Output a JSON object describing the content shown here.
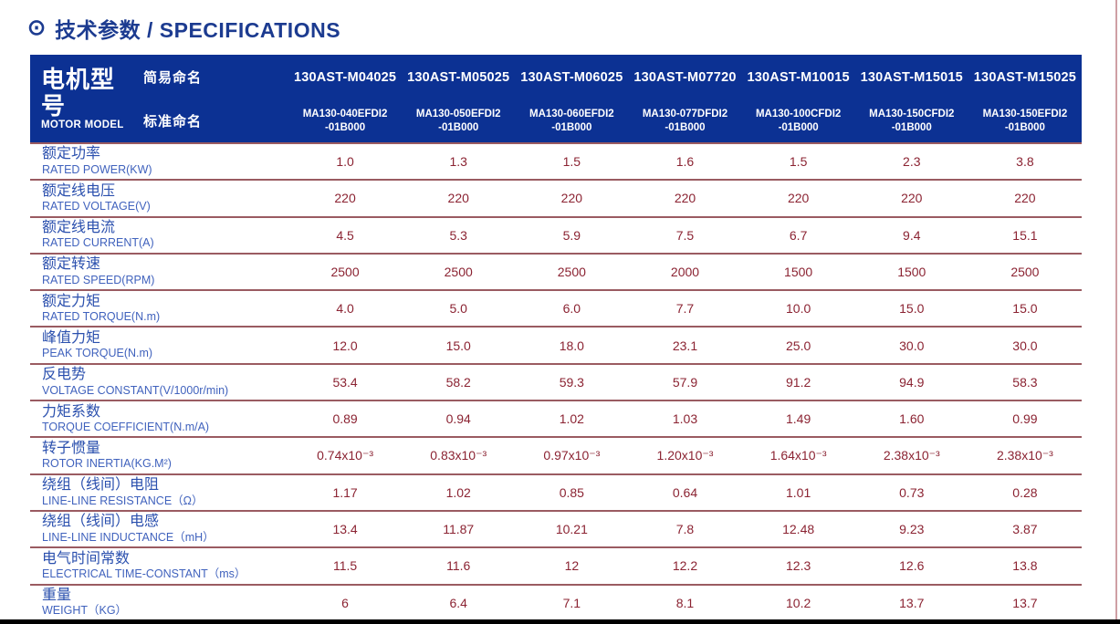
{
  "page": {
    "title_icon": "⊙",
    "title": "技术参数 / SPECIFICATIONS"
  },
  "colors": {
    "header_bg": "#0c3193",
    "title_blue": "#1c3b90",
    "label_zh_blue": "#2b50ae",
    "label_en_blue": "#4062bd",
    "value_maroon": "#8b2332",
    "row_line": "#9a5b61",
    "edge_line": "#cf9fa4",
    "bottom_bar": "#000000"
  },
  "table": {
    "model_header": {
      "zh": "电机型号",
      "en": "MOTOR MODEL",
      "simple_label": "简易命名",
      "standard_label": "标准命名"
    },
    "columns": [
      {
        "simple": "130AST-M04025",
        "standard_line1": "MA130-040EFDI2",
        "standard_line2": "-01B000"
      },
      {
        "simple": "130AST-M05025",
        "standard_line1": "MA130-050EFDI2",
        "standard_line2": "-01B000"
      },
      {
        "simple": "130AST-M06025",
        "standard_line1": "MA130-060EFDI2",
        "standard_line2": "-01B000"
      },
      {
        "simple": "130AST-M07720",
        "standard_line1": "MA130-077DFDI2",
        "standard_line2": "-01B000"
      },
      {
        "simple": "130AST-M10015",
        "standard_line1": "MA130-100CFDI2",
        "standard_line2": "-01B000"
      },
      {
        "simple": "130AST-M15015",
        "standard_line1": "MA130-150CFDI2",
        "standard_line2": "-01B000"
      },
      {
        "simple": "130AST-M15025",
        "standard_line1": "MA130-150EFDI2",
        "standard_line2": "-01B000"
      }
    ],
    "rows": [
      {
        "zh": "额定功率",
        "en": "RATED POWER(KW)",
        "values": [
          "1.0",
          "1.3",
          "1.5",
          "1.6",
          "1.5",
          "2.3",
          "3.8"
        ]
      },
      {
        "zh": "额定线电压",
        "en": "RATED VOLTAGE(V)",
        "values": [
          "220",
          "220",
          "220",
          "220",
          "220",
          "220",
          "220"
        ]
      },
      {
        "zh": "额定线电流",
        "en": "RATED CURRENT(A)",
        "values": [
          "4.5",
          "5.3",
          "5.9",
          "7.5",
          "6.7",
          "9.4",
          "15.1"
        ]
      },
      {
        "zh": "额定转速",
        "en": "RATED SPEED(RPM)",
        "values": [
          "2500",
          "2500",
          "2500",
          "2000",
          "1500",
          "1500",
          "2500"
        ]
      },
      {
        "zh": "额定力矩",
        "en": "RATED TORQUE(N.m)",
        "values": [
          "4.0",
          "5.0",
          "6.0",
          "7.7",
          "10.0",
          "15.0",
          "15.0"
        ]
      },
      {
        "zh": "峰值力矩",
        "en": "PEAK TORQUE(N.m)",
        "values": [
          "12.0",
          "15.0",
          "18.0",
          "23.1",
          "25.0",
          "30.0",
          "30.0"
        ]
      },
      {
        "zh": "反电势",
        "en": "VOLTAGE CONSTANT(V/1000r/min)",
        "values": [
          "53.4",
          "58.2",
          "59.3",
          "57.9",
          "91.2",
          "94.9",
          "58.3"
        ]
      },
      {
        "zh": "力矩系数",
        "en": "TORQUE COEFFICIENT(N.m/A)",
        "values": [
          "0.89",
          "0.94",
          "1.02",
          "1.03",
          "1.49",
          "1.60",
          "0.99"
        ]
      },
      {
        "zh": "转子惯量",
        "en": "ROTOR INERTIA(KG.M²)",
        "values": [
          "0.74x10⁻³",
          "0.83x10⁻³",
          "0.97x10⁻³",
          "1.20x10⁻³",
          "1.64x10⁻³",
          "2.38x10⁻³",
          "2.38x10⁻³"
        ]
      },
      {
        "zh": "绕组（线间）电阻",
        "en": "LINE-LINE RESISTANCE（Ω）",
        "values": [
          "1.17",
          "1.02",
          "0.85",
          "0.64",
          "1.01",
          "0.73",
          "0.28"
        ]
      },
      {
        "zh": "绕组（线间）电感",
        "en": "LINE-LINE INDUCTANCE（mH）",
        "values": [
          "13.4",
          "11.87",
          "10.21",
          "7.8",
          "12.48",
          "9.23",
          "3.87"
        ]
      },
      {
        "zh": "电气时间常数",
        "en": "ELECTRICAL TIME-CONSTANT（ms）",
        "values": [
          "11.5",
          "11.6",
          "12",
          "12.2",
          "12.3",
          "12.6",
          "13.8"
        ]
      },
      {
        "zh": "重量",
        "en": "WEIGHT（KG）",
        "values": [
          "6",
          "6.4",
          "7.1",
          "8.1",
          "10.2",
          "13.7",
          "13.7"
        ]
      }
    ]
  }
}
